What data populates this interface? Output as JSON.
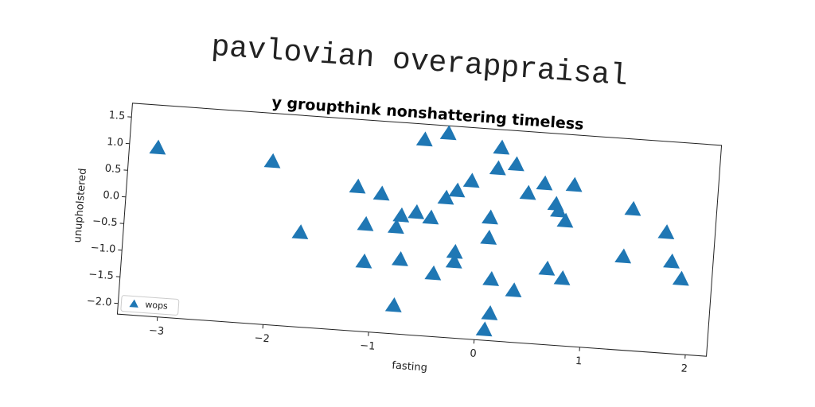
{
  "chart_data": {
    "type": "scatter",
    "suptitle": "pavlovian overappraisal",
    "title": "y groupthink nonshattering timeless",
    "xlabel": "fasting",
    "ylabel": "unupholstered",
    "xlim": [
      -3.38,
      2.2
    ],
    "ylim": [
      -2.2,
      1.76
    ],
    "xticks": [
      {
        "value": -3,
        "label": "−3"
      },
      {
        "value": -2,
        "label": "−2"
      },
      {
        "value": -1,
        "label": "−1"
      },
      0,
      1,
      2
    ],
    "yticks": [
      {
        "value": -2.0,
        "label": "−2.0"
      },
      {
        "value": -1.5,
        "label": "−1.5"
      },
      {
        "value": -1.0,
        "label": "−1.0"
      },
      {
        "value": -0.5,
        "label": "−0.5"
      },
      {
        "value": 0.0,
        "label": "0.0"
      },
      {
        "value": 0.5,
        "label": "0.5"
      },
      {
        "value": 1.0,
        "label": "1.0"
      },
      {
        "value": 1.5,
        "label": "1.5"
      }
    ],
    "legend": "lower left",
    "series": [
      {
        "name": "wops",
        "color": "#1f77b4",
        "x": [
          -3.11,
          -2.02,
          -1.71,
          -1.2,
          -0.97,
          -1.1,
          -1.09,
          -0.78,
          -0.75,
          -0.81,
          -0.77,
          -0.63,
          -0.49,
          -0.6,
          -0.38,
          -0.43,
          -0.36,
          -0.26,
          -0.13,
          -0.24,
          -0.24,
          0.07,
          0.07,
          0.12,
          0.13,
          0.09,
          0.13,
          0.11,
          0.28,
          0.34,
          0.41,
          0.56,
          0.64,
          0.68,
          0.71,
          0.78,
          0.79,
          0.84,
          1.41,
          1.35,
          1.74,
          1.81,
          1.91
        ],
        "values": [
          0.95,
          0.85,
          -0.44,
          0.49,
          0.39,
          -0.2,
          -0.9,
          -1.68,
          -0.81,
          -0.21,
          0.01,
          0.09,
          0.01,
          1.46,
          1.61,
          -1.03,
          0.4,
          0.55,
          0.75,
          -0.6,
          -0.78,
          0.09,
          -0.29,
          -1.06,
          -1.7,
          -2.01,
          1.41,
          1.02,
          1.12,
          -1.24,
          0.6,
          0.8,
          -0.79,
          0.43,
          0.31,
          0.13,
          -0.95,
          0.81,
          0.44,
          -0.46,
          0.05,
          -0.49,
          -0.8
        ]
      }
    ]
  }
}
